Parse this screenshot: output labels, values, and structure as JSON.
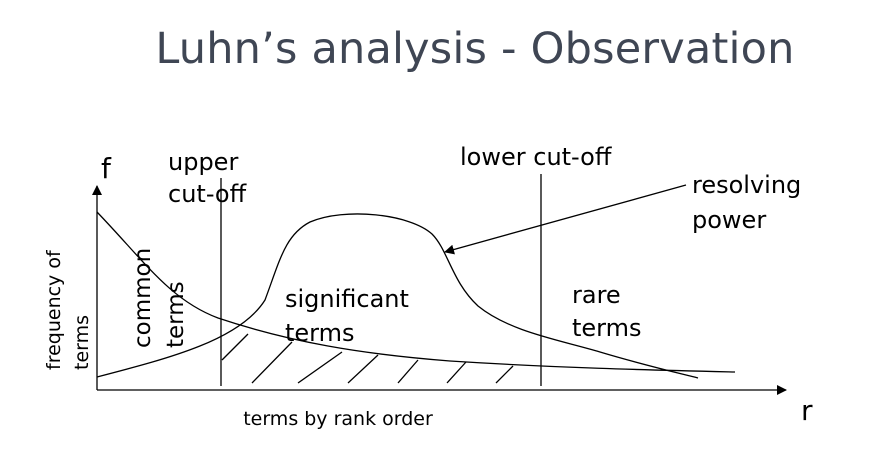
{
  "slide": {
    "title": "Luhn’s analysis - Observation"
  },
  "diagram": {
    "y_axis_symbol": "f",
    "x_axis_symbol": "r",
    "y_axis_label_line1": "frequency of",
    "y_axis_label_line2": "terms",
    "x_axis_label": "terms by rank order",
    "upper_cutoff_line1": "upper",
    "upper_cutoff_line2": "cut-off",
    "lower_cutoff": "lower cut-off",
    "resolving_power_line1": "resolving",
    "resolving_power_line2": "power",
    "significant_terms_line1": "significant",
    "significant_terms_line2": "terms",
    "common_terms_line1": "common",
    "common_terms_line2": "terms",
    "rare_terms_line1": "rare",
    "rare_terms_line2": "terms"
  }
}
